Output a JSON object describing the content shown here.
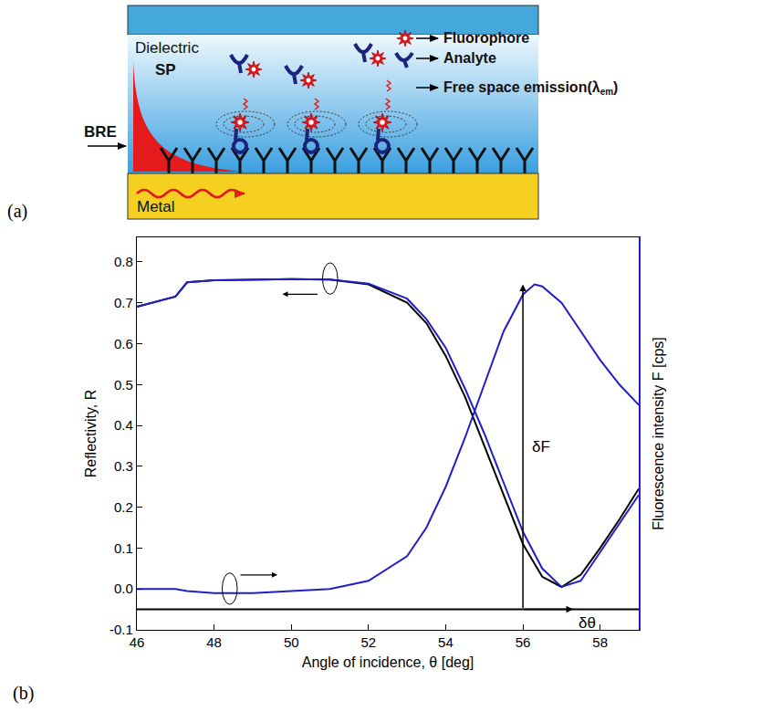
{
  "diagram": {
    "panel": "(a)",
    "labels": {
      "dielectric": "Dielectric",
      "sp": "SP",
      "bre": "BRE",
      "metal": "Metal"
    },
    "key_items": [
      {
        "text": "Fluorophore"
      },
      {
        "text": "Analyte"
      },
      {
        "text": "Free space emission(λ",
        "subscript": "em",
        "end": ")"
      }
    ]
  },
  "chart_data": {
    "type": "line",
    "panel": "(b)",
    "xlabel": "Angle of incidence, θ [deg]",
    "ylabel": "Reflectivity, R",
    "y2label": "Fluorescence intensity F [cps]",
    "xlim": [
      46,
      59
    ],
    "xticks": [
      46,
      48,
      50,
      52,
      54,
      56,
      58
    ],
    "ylim": [
      -0.1,
      0.86
    ],
    "yticks": [
      -0.1,
      {
        "value": 0,
        "label": "0.0"
      },
      0.1,
      0.2,
      0.3,
      0.4,
      0.5,
      0.6,
      0.7,
      0.8
    ],
    "y2lim": [
      -0.1,
      0.86
    ],
    "y2ticks": [],
    "grid": false,
    "series": [
      {
        "color": "#000000",
        "axis": "y",
        "x": [
          46,
          47,
          47.3,
          48,
          50,
          51,
          52,
          53,
          53.5,
          54,
          54.5,
          55,
          55.5,
          56,
          56.5,
          57,
          57.5,
          58,
          58.5,
          59
        ],
        "values": [
          0.69,
          0.715,
          0.75,
          0.755,
          0.758,
          0.757,
          0.745,
          0.7,
          0.65,
          0.57,
          0.47,
          0.35,
          0.23,
          0.11,
          0.03,
          0.005,
          0.035,
          0.1,
          0.17,
          0.245
        ]
      },
      {
        "color": "#1f1fcc",
        "axis": "y",
        "x": [
          46,
          47,
          47.3,
          48,
          50,
          51,
          52,
          53,
          53.5,
          54,
          54.5,
          55,
          55.5,
          56,
          56.5,
          57,
          57.5,
          58,
          58.5,
          59
        ],
        "values": [
          0.69,
          0.715,
          0.75,
          0.755,
          0.758,
          0.757,
          0.747,
          0.71,
          0.66,
          0.59,
          0.49,
          0.38,
          0.26,
          0.14,
          0.05,
          0.005,
          0.02,
          0.09,
          0.16,
          0.23
        ]
      },
      {
        "color": "#1f1fcc",
        "axis": "y2",
        "x": [
          46,
          47,
          47.3,
          48,
          49,
          50,
          51,
          52,
          53,
          53.5,
          54,
          54.5,
          55,
          55.5,
          56,
          56.3,
          56.5,
          57,
          57.5,
          58,
          58.5,
          59
        ],
        "values": [
          0.0,
          0.0,
          -0.005,
          -0.01,
          -0.01,
          -0.005,
          0.0,
          0.02,
          0.08,
          0.15,
          0.25,
          0.37,
          0.5,
          0.63,
          0.72,
          0.745,
          0.74,
          0.7,
          0.63,
          0.56,
          0.5,
          0.45
        ]
      }
    ],
    "reference_line": -0.05,
    "annotations": [
      {
        "text": "δF",
        "x": 56,
        "y0": -0.05,
        "y1": 0.745
      },
      {
        "text": "δθ",
        "x0": 56,
        "x1": 57.3,
        "y": -0.05
      }
    ]
  }
}
